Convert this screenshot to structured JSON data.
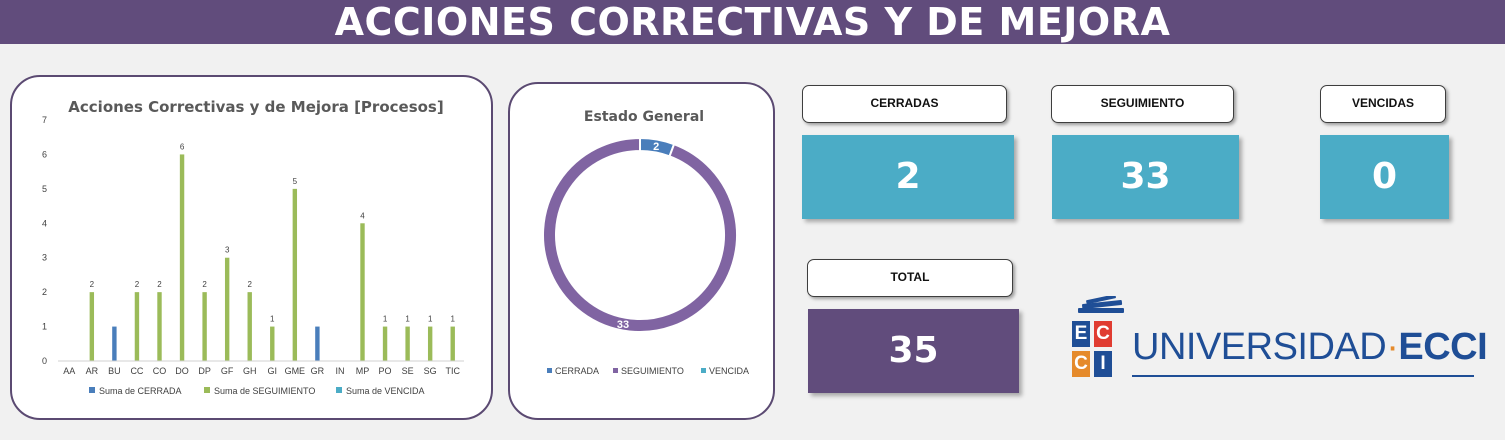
{
  "header": {
    "title": "ACCIONES CORRECTIVAS Y DE MEJORA"
  },
  "process_chart": {
    "title": "Acciones Correctivas y de Mejora [Procesos]",
    "colors": {
      "cerrada": "#4a7ebb",
      "seguimiento": "#9bbb59",
      "vencida": "#4bacc6"
    }
  },
  "status_chart": {
    "title": "Estado General",
    "colors": {
      "cerrada": "#4a7ebb",
      "seguimiento": "#8064a2",
      "vencida": "#4bacc6"
    }
  },
  "chart_data": [
    {
      "type": "bar",
      "title": "Acciones Correctivas y de Mejora [Procesos]",
      "categories": [
        "AA",
        "AR",
        "BU",
        "CC",
        "CO",
        "DO",
        "DP",
        "GF",
        "GH",
        "GI",
        "GME",
        "GR",
        "IN",
        "MP",
        "PO",
        "SE",
        "SG",
        "TIC"
      ],
      "series": [
        {
          "name": "Suma de CERRADA",
          "values": [
            0,
            0,
            1,
            0,
            0,
            0,
            0,
            0,
            0,
            0,
            0,
            1,
            0,
            0,
            0,
            0,
            0,
            0
          ]
        },
        {
          "name": "Suma de SEGUIMIENTO",
          "values": [
            0,
            2,
            0,
            2,
            2,
            6,
            2,
            3,
            2,
            1,
            5,
            0,
            0,
            4,
            1,
            1,
            1,
            1
          ]
        },
        {
          "name": "Suma de VENCIDA",
          "values": [
            0,
            0,
            0,
            0,
            0,
            0,
            0,
            0,
            0,
            0,
            0,
            0,
            0,
            0,
            0,
            0,
            0,
            0
          ]
        }
      ],
      "data_labels": [
        "",
        "2",
        "",
        "2",
        "2",
        "6",
        "2",
        "3",
        "2",
        "1",
        "5",
        "",
        "",
        "4",
        "1",
        "1",
        "1",
        "1"
      ],
      "ylim": [
        0,
        7
      ],
      "yticks": [
        "0",
        "1",
        "2",
        "3",
        "4",
        "5",
        "6",
        "7"
      ],
      "grid": false,
      "legend": "bottom"
    },
    {
      "type": "pie",
      "title": "Estado General",
      "slices": [
        {
          "label": "CERRADA",
          "value": 2,
          "data_label": "2"
        },
        {
          "label": "SEGUIMIENTO",
          "value": 33,
          "data_label": "33"
        },
        {
          "label": "VENCIDA",
          "value": 0,
          "data_label": ""
        }
      ],
      "legend": "bottom"
    }
  ],
  "kpis": {
    "cerradas": {
      "label": "CERRADAS",
      "value": "2"
    },
    "seguimiento": {
      "label": "SEGUIMIENTO",
      "value": "33"
    },
    "vencidas": {
      "label": "VENCIDAS",
      "value": "0"
    },
    "total": {
      "label": "TOTAL",
      "value": "35"
    },
    "colors": {
      "tile": "#4bacc6",
      "total": "#614c7c"
    }
  },
  "logo": {
    "tiles": [
      "E",
      "C",
      "C",
      "I"
    ],
    "name_part1": "UNIVERSIDAD",
    "separator": "·",
    "name_part2": "ECCI",
    "colors": {
      "blue": "#1f4e96",
      "red": "#e03c31",
      "orange": "#e58a2b"
    }
  }
}
